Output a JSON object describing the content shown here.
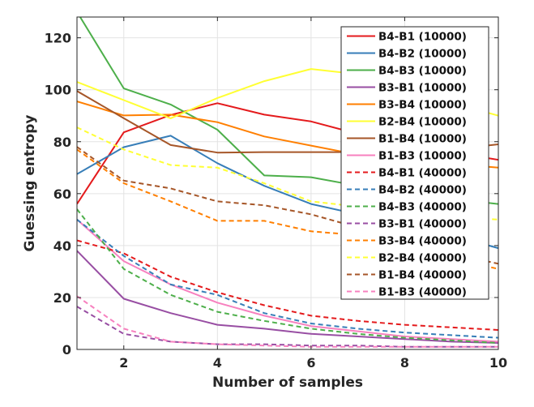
{
  "chart_data": {
    "type": "line",
    "title": "",
    "xlabel": "Number of samples",
    "ylabel": "Guessing entropy",
    "xlim": [
      1,
      10
    ],
    "ylim": [
      0,
      128
    ],
    "xticks": [
      2,
      4,
      6,
      8,
      10
    ],
    "yticks": [
      0,
      20,
      40,
      60,
      80,
      100,
      120
    ],
    "grid": true,
    "legend_position": "top-right",
    "x": [
      1,
      2,
      3,
      4,
      5,
      6,
      7,
      8,
      9,
      10
    ],
    "series": [
      {
        "name": "B4-B1  (10000)",
        "color": "#e41a1c",
        "dashed": false,
        "values": [
          56,
          83.6,
          90.3,
          94.8,
          90.4,
          87.8,
          83,
          79,
          76,
          73
        ]
      },
      {
        "name": "B4-B2  (10000)",
        "color": "#377eb8",
        "dashed": false,
        "values": [
          67.5,
          77.9,
          82.3,
          71.7,
          63,
          56,
          52,
          48,
          44,
          39
        ]
      },
      {
        "name": "B4-B3  (10000)",
        "color": "#4daf4a",
        "dashed": false,
        "values": [
          130,
          100.5,
          94.3,
          84.6,
          67,
          66.3,
          63,
          61,
          58,
          56
        ]
      },
      {
        "name": "B3-B1  (10000)",
        "color": "#984ea3",
        "dashed": false,
        "values": [
          38,
          19.5,
          14,
          9.5,
          8,
          6,
          5,
          4,
          3,
          2.5
        ]
      },
      {
        "name": "B3-B4  (10000)",
        "color": "#ff7f00",
        "dashed": false,
        "values": [
          95.5,
          90.1,
          90.4,
          87.5,
          82,
          78.5,
          75,
          73,
          71.5,
          70
        ]
      },
      {
        "name": "B2-B4  (10000)",
        "color": "#ffff33",
        "dashed": false,
        "values": [
          103,
          96,
          89,
          96.8,
          103.3,
          108,
          106,
          100,
          95,
          90
        ]
      },
      {
        "name": "B1-B4  (10000)",
        "color": "#a65628",
        "dashed": false,
        "values": [
          99.5,
          89,
          78.7,
          75.8,
          76,
          76,
          76,
          76.5,
          77,
          79
        ]
      },
      {
        "name": "B1-B3  (10000)",
        "color": "#f781bf",
        "dashed": false,
        "values": [
          50,
          34,
          25,
          18,
          13,
          9,
          7,
          5,
          4,
          3
        ]
      },
      {
        "name": "B4-B1  (40000)",
        "color": "#e41a1c",
        "dashed": true,
        "values": [
          42,
          37,
          28,
          22,
          17,
          13,
          11,
          9.5,
          8.5,
          7.5
        ]
      },
      {
        "name": "B4-B2  (40000)",
        "color": "#377eb8",
        "dashed": true,
        "values": [
          50,
          36,
          25,
          21,
          14,
          10,
          8,
          6.5,
          5.5,
          4.5
        ]
      },
      {
        "name": "B4-B3  (40000)",
        "color": "#4daf4a",
        "dashed": true,
        "values": [
          54,
          31,
          21,
          14.5,
          11,
          8,
          6,
          4.5,
          3.5,
          2.5
        ]
      },
      {
        "name": "B3-B1  (40000)",
        "color": "#984ea3",
        "dashed": true,
        "values": [
          16.5,
          6,
          3,
          2,
          2,
          1.5,
          1.5,
          1,
          1,
          1
        ]
      },
      {
        "name": "B3-B4  (40000)",
        "color": "#ff7f00",
        "dashed": true,
        "values": [
          77,
          64,
          57,
          49.5,
          49.5,
          45.5,
          44,
          40,
          35,
          31
        ]
      },
      {
        "name": "B2-B4  (40000)",
        "color": "#ffff33",
        "dashed": true,
        "values": [
          85.5,
          77,
          71,
          70,
          64,
          57,
          55,
          53,
          51,
          50
        ]
      },
      {
        "name": "B1-B4  (40000)",
        "color": "#a65628",
        "dashed": true,
        "values": [
          78,
          65,
          62,
          57,
          55.5,
          52,
          47,
          42,
          37,
          33
        ]
      },
      {
        "name": "B1-B3  (40000)",
        "color": "#f781bf",
        "dashed": true,
        "values": [
          20.5,
          8,
          3,
          2,
          1.5,
          1,
          1,
          1,
          1,
          1
        ]
      }
    ]
  }
}
